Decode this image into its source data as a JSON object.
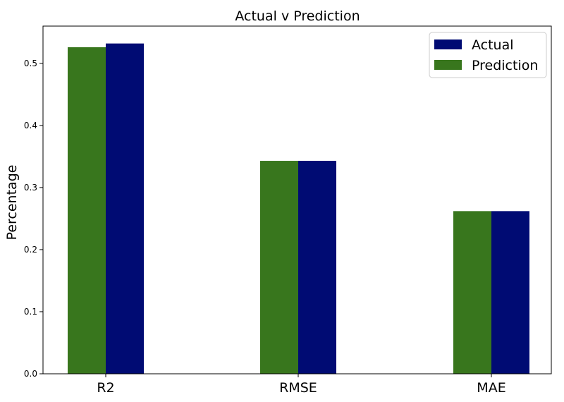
{
  "chart_data": {
    "type": "bar",
    "title": "Actual v Prediction",
    "xlabel": "",
    "ylabel": "Percentage",
    "categories": [
      "R2",
      "RMSE",
      "MAE"
    ],
    "series": [
      {
        "name": "Prediction",
        "values": [
          0.526,
          0.343,
          0.262
        ],
        "color": "#38761d"
      },
      {
        "name": "Actual",
        "values": [
          0.532,
          0.343,
          0.262
        ],
        "color": "#000b73"
      }
    ],
    "ylim": [
      0,
      0.56
    ],
    "yticks": [
      "0.0",
      "0.1",
      "0.2",
      "0.3",
      "0.4",
      "0.5"
    ],
    "legend_position": "top-right",
    "legend_order": [
      "Actual",
      "Prediction"
    ],
    "grid": false
  }
}
